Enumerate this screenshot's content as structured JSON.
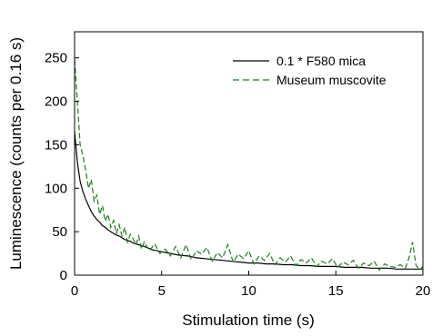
{
  "chart_data": {
    "type": "line",
    "title": "",
    "xlabel": "Stimulation time (s)",
    "ylabel": "Luminescence (counts per 0.16 s)",
    "xlim": [
      0,
      20
    ],
    "ylim": [
      0,
      280
    ],
    "xticks": [
      0,
      5,
      10,
      15,
      20
    ],
    "yticks": [
      0,
      50,
      100,
      150,
      200,
      250
    ],
    "grid": false,
    "legend_position": "top-right",
    "series": [
      {
        "name": "0.1 * F580 mica",
        "color": "#000000",
        "style": "solid",
        "x": [
          0,
          0.16,
          0.32,
          0.48,
          0.64,
          0.8,
          0.96,
          1.12,
          1.28,
          1.44,
          1.6,
          1.76,
          1.92,
          2.08,
          2.24,
          2.4,
          2.56,
          2.72,
          2.88,
          3.04,
          3.2,
          3.36,
          3.52,
          3.68,
          3.84,
          4.0,
          4.5,
          5.0,
          5.5,
          6.0,
          6.5,
          7.0,
          7.5,
          8.0,
          8.5,
          9.0,
          9.5,
          10.0,
          10.5,
          11.0,
          11.5,
          12.0,
          12.5,
          13.0,
          13.5,
          14.0,
          14.5,
          15.0,
          15.5,
          16.0,
          16.5,
          17.0,
          17.5,
          18.0,
          18.5,
          19.0,
          19.5,
          20.0
        ],
        "y": [
          165,
          130,
          108,
          96,
          87,
          80,
          73,
          68,
          64,
          61,
          57,
          55,
          52,
          50,
          48,
          46,
          45,
          43,
          41,
          40,
          39,
          37,
          36,
          35,
          34,
          33,
          29,
          27,
          25,
          23,
          22,
          20,
          19,
          18,
          17,
          16,
          15,
          14,
          14,
          13,
          13,
          12,
          12,
          11,
          11,
          10,
          10,
          10,
          9,
          9,
          9,
          8,
          8,
          8,
          7,
          7,
          7,
          7
        ]
      },
      {
        "name": "Museum muscovite",
        "color": "#1e7b1e",
        "style": "dashed",
        "x": [
          0,
          0.16,
          0.32,
          0.48,
          0.64,
          0.8,
          0.96,
          1.12,
          1.28,
          1.44,
          1.6,
          1.76,
          1.92,
          2.08,
          2.24,
          2.4,
          2.56,
          2.72,
          2.88,
          3.04,
          3.2,
          3.36,
          3.52,
          3.68,
          3.84,
          4.0,
          4.3,
          4.6,
          4.9,
          5.2,
          5.5,
          5.8,
          6.1,
          6.4,
          6.7,
          7.0,
          7.3,
          7.6,
          7.9,
          8.2,
          8.5,
          8.8,
          9.1,
          9.4,
          9.7,
          10.0,
          10.3,
          10.6,
          10.9,
          11.2,
          11.5,
          11.8,
          12.1,
          12.4,
          12.7,
          13.0,
          13.3,
          13.6,
          13.9,
          14.2,
          14.5,
          14.8,
          15.1,
          15.4,
          15.7,
          16.0,
          16.3,
          16.6,
          16.9,
          17.2,
          17.5,
          17.8,
          18.1,
          18.4,
          18.7,
          19.0,
          19.2,
          19.4,
          19.6,
          19.8,
          20.0
        ],
        "y": [
          248,
          200,
          150,
          138,
          120,
          100,
          110,
          85,
          92,
          70,
          80,
          62,
          70,
          55,
          63,
          48,
          58,
          45,
          55,
          38,
          47,
          42,
          35,
          45,
          30,
          38,
          28,
          36,
          25,
          30,
          22,
          33,
          20,
          35,
          18,
          28,
          24,
          32,
          16,
          26,
          20,
          35,
          15,
          24,
          19,
          28,
          13,
          22,
          17,
          25,
          12,
          20,
          15,
          22,
          11,
          18,
          14,
          20,
          10,
          16,
          13,
          19,
          9,
          15,
          12,
          17,
          8,
          14,
          11,
          16,
          6,
          13,
          10,
          9,
          12,
          8,
          20,
          38,
          12,
          6,
          10
        ]
      }
    ]
  }
}
